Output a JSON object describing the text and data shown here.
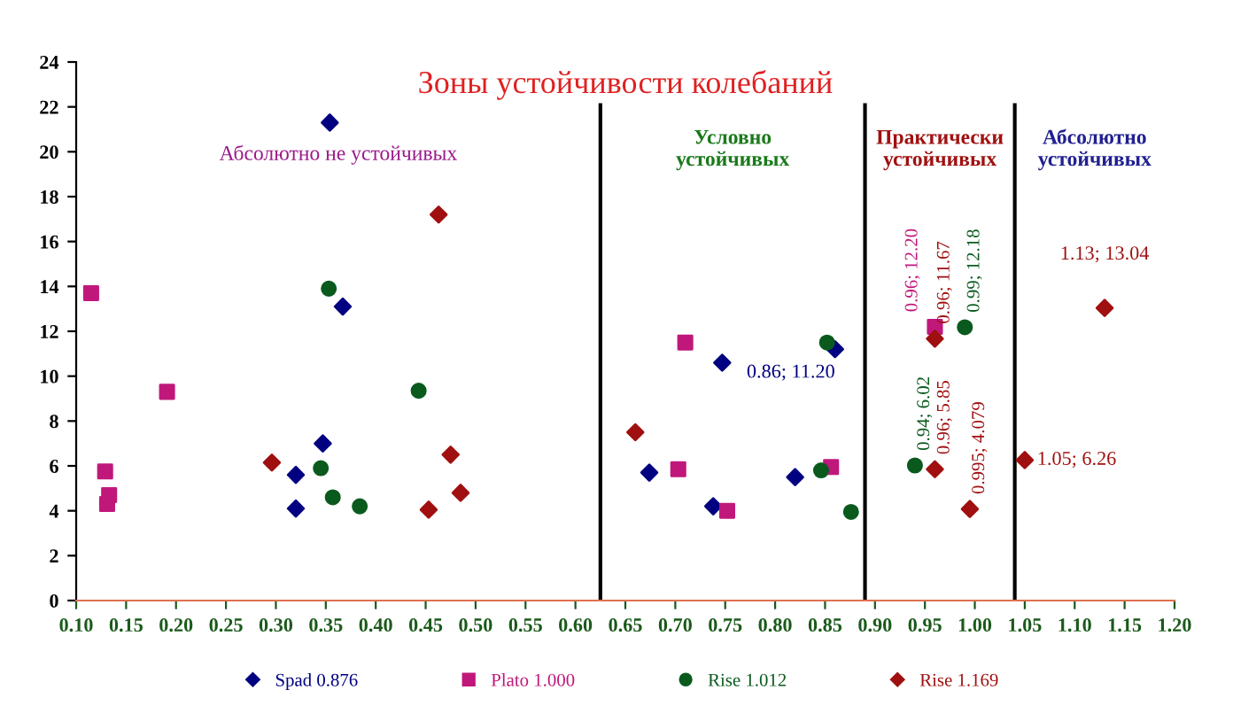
{
  "chart_data": {
    "type": "scatter",
    "title": "Зоны устойчивости колебаний",
    "xlim": [
      0.1,
      1.2
    ],
    "xticks": [
      {
        "value": 0.1,
        "label": "0.10"
      },
      0.15,
      {
        "value": 0.2,
        "label": "0.20"
      },
      0.25,
      {
        "value": 0.3,
        "label": "0.30"
      },
      0.35,
      {
        "value": 0.4,
        "label": "0.40"
      },
      0.45,
      {
        "value": 0.5,
        "label": "0.50"
      },
      0.55,
      {
        "value": 0.6,
        "label": "0.60"
      },
      0.65,
      {
        "value": 0.7,
        "label": "0.70"
      },
      0.75,
      {
        "value": 0.8,
        "label": "0.80"
      },
      0.85,
      {
        "value": 0.9,
        "label": "0.90"
      },
      0.95,
      {
        "value": 1.0,
        "label": "1.00"
      },
      1.05,
      {
        "value": 1.1,
        "label": "1.10"
      },
      1.15,
      {
        "value": 1.2,
        "label": "1.20"
      }
    ],
    "ylim": [
      0,
      24
    ],
    "yticks": [
      0,
      2,
      4,
      6,
      8,
      10,
      12,
      14,
      16,
      18,
      20,
      22,
      24
    ],
    "grid": false,
    "legend": "bottom",
    "series": [
      {
        "name": "Spad 0.876",
        "color": "#000080",
        "marker": "diamond",
        "x": [
          0.354,
          0.367,
          0.347,
          0.32,
          0.32,
          0.747,
          0.86,
          0.674,
          0.82,
          0.738
        ],
        "values": [
          21.3,
          13.1,
          7.0,
          5.6,
          4.1,
          10.6,
          11.2,
          5.7,
          5.5,
          4.2
        ],
        "value_labels": [
          null,
          null,
          null,
          null,
          null,
          null,
          "0.86; 11.20",
          null,
          null,
          null
        ]
      },
      {
        "name": "Plato 1.000",
        "color": "#c0187a",
        "marker": "square",
        "x": [
          0.115,
          0.191,
          0.129,
          0.133,
          0.131,
          0.71,
          0.703,
          0.752,
          0.856,
          0.96
        ],
        "values": [
          13.7,
          9.3,
          5.75,
          4.7,
          4.3,
          11.5,
          5.85,
          4.0,
          5.95,
          12.2
        ],
        "value_labels": [
          null,
          null,
          null,
          null,
          null,
          null,
          null,
          null,
          null,
          "0.96; 12.20"
        ]
      },
      {
        "name": "Rise 1.012",
        "color": "#0a5a1e",
        "marker": "circle",
        "x": [
          0.353,
          0.443,
          0.345,
          0.357,
          0.384,
          0.852,
          0.846,
          0.876,
          0.94,
          0.99
        ],
        "values": [
          13.9,
          9.35,
          5.9,
          4.6,
          4.2,
          11.5,
          5.8,
          3.95,
          6.02,
          12.18
        ],
        "value_labels": [
          null,
          null,
          null,
          null,
          null,
          null,
          null,
          null,
          "0.94; 6.02",
          "0.99; 12.18"
        ]
      },
      {
        "name": "Rise 1.169",
        "color": "#a01010",
        "marker": "diamond",
        "x": [
          0.463,
          0.296,
          0.475,
          0.485,
          0.453,
          0.66,
          0.96,
          0.96,
          0.995,
          1.05,
          1.13
        ],
        "values": [
          17.2,
          6.15,
          6.5,
          4.8,
          4.05,
          7.5,
          11.67,
          5.85,
          4.079,
          6.26,
          13.04
        ],
        "value_labels": [
          null,
          null,
          null,
          null,
          null,
          null,
          "0.96; 11.67",
          "0.96; 5.85",
          "0.995; 4.079",
          "1.05; 6.26",
          "1.13; 13.04"
        ]
      }
    ],
    "ref_lines": [
      {
        "axis": "x",
        "value": 0.625,
        "color": "#000000"
      },
      {
        "axis": "x",
        "value": 0.89,
        "color": "#000000"
      },
      {
        "axis": "x",
        "value": 1.04,
        "color": "#000000"
      }
    ],
    "annotations": [
      "Абсолютно не устойчивых",
      "Условно устойчивых",
      "Практически устойчивых",
      "Абсолютно устойчивых"
    ]
  }
}
